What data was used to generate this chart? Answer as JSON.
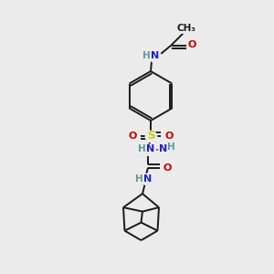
{
  "background_color": "#ebebeb",
  "bond_color": "#1a1a1a",
  "atom_colors": {
    "N": "#2020cc",
    "O": "#cc0000",
    "S": "#cccc00",
    "H": "#5a9a9a",
    "C": "#1a1a1a"
  },
  "figsize": [
    3.0,
    3.0
  ],
  "dpi": 100,
  "lw": 1.4,
  "fontsize": 8
}
